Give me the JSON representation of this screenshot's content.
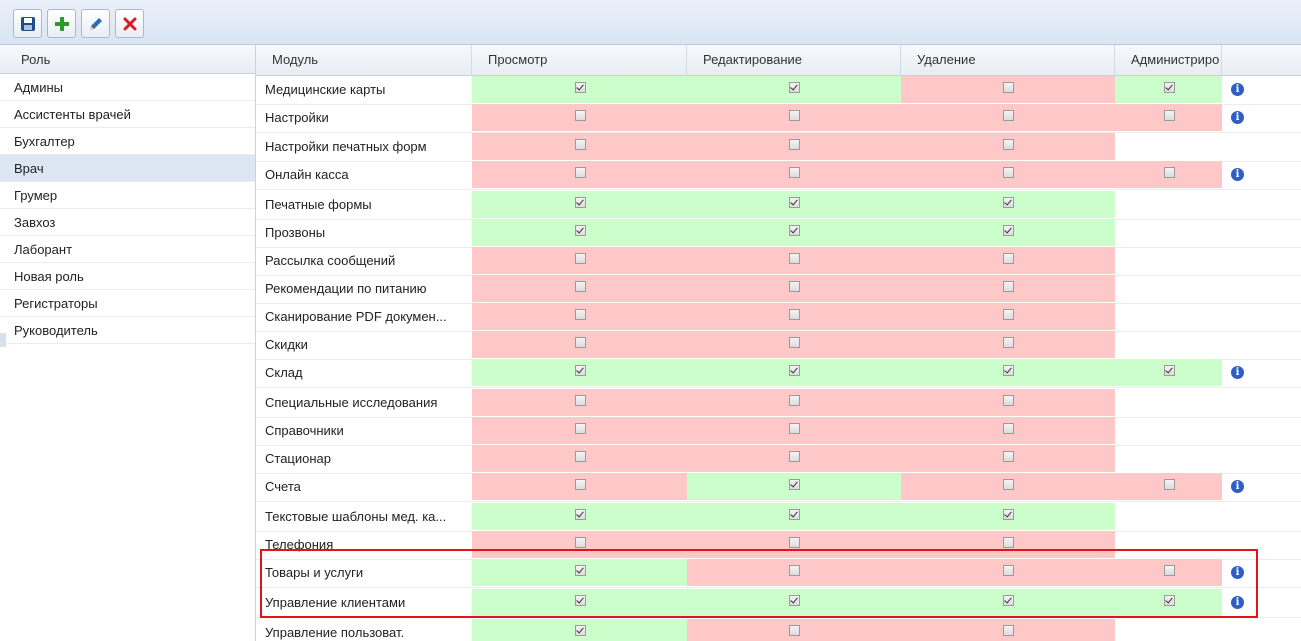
{
  "toolbar": {
    "buttons": [
      {
        "name": "save",
        "icon": "save-icon",
        "color": "#1f4e8c"
      },
      {
        "name": "add",
        "icon": "plus-icon",
        "color": "#2e9a2e"
      },
      {
        "name": "edit",
        "icon": "pencil-icon",
        "color": "#2d6cb0"
      },
      {
        "name": "delete",
        "icon": "close-icon",
        "color": "#d42020"
      }
    ]
  },
  "roles": {
    "header": "Роль",
    "items": [
      "Админы",
      "Ассистенты врачей",
      "Бухгалтер",
      "Врач",
      "Грумер",
      "Завхоз",
      "Лаборант",
      "Новая роль",
      "Регистраторы",
      "Руководитель"
    ],
    "selected_index": 3
  },
  "grid": {
    "columns": [
      "Модуль",
      "Просмотр",
      "Редактирование",
      "Удаление",
      "Администриро"
    ],
    "colors": {
      "granted": "#ccfecc",
      "denied": "#fec8c8",
      "info": "#2f5fc4"
    },
    "rows": [
      {
        "module": "Медицинские карты",
        "view": true,
        "edit": true,
        "delete": false,
        "admin": true,
        "info": true
      },
      {
        "module": "Настройки",
        "view": false,
        "edit": false,
        "delete": false,
        "admin": false,
        "info": true
      },
      {
        "module": "Настройки печатных форм",
        "view": false,
        "edit": false,
        "delete": false,
        "admin": null,
        "info": false
      },
      {
        "module": "Онлайн касса",
        "view": false,
        "edit": false,
        "delete": false,
        "admin": false,
        "info": true
      },
      {
        "module": "Печатные формы",
        "view": true,
        "edit": true,
        "delete": true,
        "admin": null,
        "info": false
      },
      {
        "module": "Прозвоны",
        "view": true,
        "edit": true,
        "delete": true,
        "admin": null,
        "info": false
      },
      {
        "module": "Рассылка сообщений",
        "view": false,
        "edit": false,
        "delete": false,
        "admin": null,
        "info": false
      },
      {
        "module": "Рекомендации по питанию",
        "view": false,
        "edit": false,
        "delete": false,
        "admin": null,
        "info": false
      },
      {
        "module": "Сканирование PDF докумен...",
        "view": false,
        "edit": false,
        "delete": false,
        "admin": null,
        "info": false
      },
      {
        "module": "Скидки",
        "view": false,
        "edit": false,
        "delete": false,
        "admin": null,
        "info": false
      },
      {
        "module": "Склад",
        "view": true,
        "edit": true,
        "delete": true,
        "admin": true,
        "info": true
      },
      {
        "module": "Специальные исследования",
        "view": false,
        "edit": false,
        "delete": false,
        "admin": null,
        "info": false
      },
      {
        "module": "Справочники",
        "view": false,
        "edit": false,
        "delete": false,
        "admin": null,
        "info": false
      },
      {
        "module": "Стационар",
        "view": false,
        "edit": false,
        "delete": false,
        "admin": null,
        "info": false
      },
      {
        "module": "Счета",
        "view": false,
        "edit": true,
        "delete": false,
        "admin": false,
        "info": true
      },
      {
        "module": "Текстовые шаблоны мед. ка...",
        "view": true,
        "edit": true,
        "delete": true,
        "admin": null,
        "info": false
      },
      {
        "module": "Телефония",
        "view": false,
        "edit": false,
        "delete": false,
        "admin": null,
        "info": false
      },
      {
        "module": "Товары и услуги",
        "view": true,
        "edit": false,
        "delete": false,
        "admin": false,
        "info": true
      },
      {
        "module": "Управление клиентами",
        "view": true,
        "edit": true,
        "delete": true,
        "admin": true,
        "info": true
      },
      {
        "module": "Управление пользоват.",
        "view": true,
        "edit": false,
        "delete": false,
        "admin": null,
        "info": false
      }
    ]
  }
}
